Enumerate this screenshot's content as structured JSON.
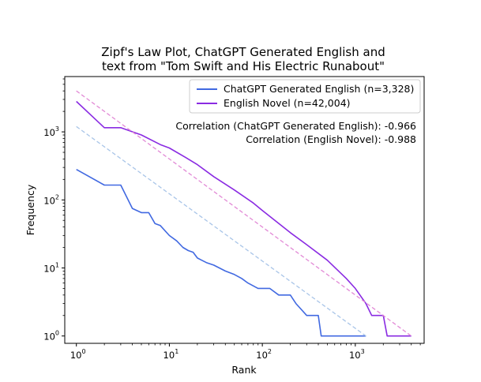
{
  "chart_data": {
    "type": "line",
    "title_lines": [
      "Zipf's Law Plot, ChatGPT Generated English and",
      "text from \"Tom Swift and His Electric Runabout\""
    ],
    "xlabel": "Rank",
    "ylabel": "Frequency",
    "x_scale": "log",
    "y_scale": "log",
    "xlim": [
      0.75,
      5500
    ],
    "ylim": [
      0.78,
      6500
    ],
    "x_ticks": [
      {
        "value": 1,
        "base": "10",
        "exp": "0"
      },
      {
        "value": 10,
        "base": "10",
        "exp": "1"
      },
      {
        "value": 100,
        "base": "10",
        "exp": "2"
      },
      {
        "value": 1000,
        "base": "10",
        "exp": "3"
      }
    ],
    "y_ticks": [
      {
        "value": 1,
        "base": "10",
        "exp": "0"
      },
      {
        "value": 10,
        "base": "10",
        "exp": "1"
      },
      {
        "value": 100,
        "base": "10",
        "exp": "2"
      },
      {
        "value": 1000,
        "base": "10",
        "exp": "3"
      }
    ],
    "series": [
      {
        "name": "ChatGPT Generated English (n=3,328)",
        "color": "#4169e1",
        "style": "solid",
        "points": [
          [
            1,
            280
          ],
          [
            2,
            165
          ],
          [
            3,
            165
          ],
          [
            4,
            75
          ],
          [
            5,
            65
          ],
          [
            6,
            65
          ],
          [
            7,
            45
          ],
          [
            8,
            42
          ],
          [
            10,
            30
          ],
          [
            12,
            25
          ],
          [
            14,
            20
          ],
          [
            16,
            18
          ],
          [
            18,
            17
          ],
          [
            20,
            14
          ],
          [
            25,
            12
          ],
          [
            30,
            11
          ],
          [
            40,
            9
          ],
          [
            50,
            8
          ],
          [
            60,
            7
          ],
          [
            70,
            6
          ],
          [
            90,
            5
          ],
          [
            120,
            5
          ],
          [
            150,
            4
          ],
          [
            200,
            4
          ],
          [
            230,
            3
          ],
          [
            300,
            2
          ],
          [
            400,
            2
          ],
          [
            430,
            1
          ],
          [
            1300,
            1
          ]
        ]
      },
      {
        "name": "English Novel (n=42,004)",
        "color": "#8a2be2",
        "style": "solid",
        "points": [
          [
            1,
            2800
          ],
          [
            2,
            1150
          ],
          [
            3,
            1150
          ],
          [
            5,
            900
          ],
          [
            8,
            650
          ],
          [
            10,
            580
          ],
          [
            15,
            420
          ],
          [
            20,
            330
          ],
          [
            30,
            220
          ],
          [
            50,
            140
          ],
          [
            80,
            90
          ],
          [
            100,
            70
          ],
          [
            200,
            33
          ],
          [
            300,
            22
          ],
          [
            500,
            13
          ],
          [
            800,
            7
          ],
          [
            1000,
            5
          ],
          [
            1300,
            3
          ],
          [
            1500,
            2
          ],
          [
            2000,
            2
          ],
          [
            2200,
            1
          ],
          [
            4000,
            1
          ]
        ]
      },
      {
        "name": "",
        "color": "#a9c5e8",
        "style": "dashed",
        "points": [
          [
            1,
            1200
          ],
          [
            1300,
            1
          ]
        ]
      },
      {
        "name": "",
        "color": "#e28ad6",
        "style": "dashed",
        "points": [
          [
            1,
            4000
          ],
          [
            4000,
            1
          ]
        ]
      }
    ],
    "legend": {
      "placement": "top-right",
      "entries": [
        {
          "label": "ChatGPT Generated English (n=3,328)",
          "color": "#4169e1"
        },
        {
          "label": "English Novel (n=42,004)",
          "color": "#8a2be2"
        }
      ]
    },
    "annotations": [
      "Correlation (ChatGPT Generated English): -0.966",
      "Correlation (English Novel): -0.988"
    ],
    "grid": false
  }
}
